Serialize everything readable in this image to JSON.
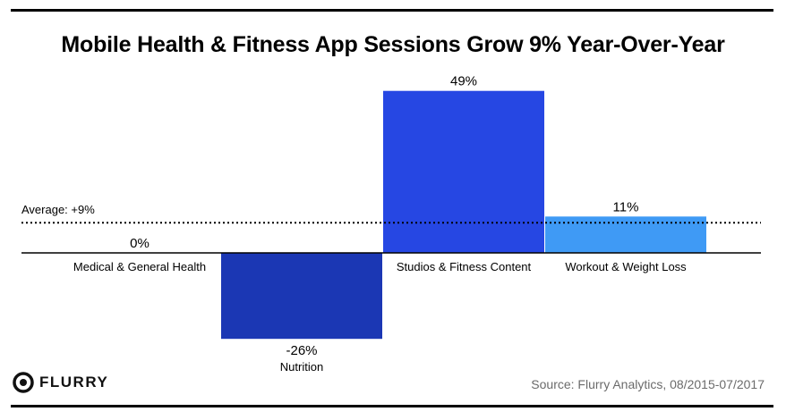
{
  "title": "Mobile Health & Fitness App Sessions Grow 9% Year-Over-Year",
  "source": "Source: Flurry Analytics, 08/2015-07/2017",
  "logo": {
    "text": "FLURRY",
    "icon": "flurry-logo-icon"
  },
  "chart_data": {
    "type": "bar",
    "title": "Mobile Health & Fitness App Sessions Grow 9% Year-Over-Year",
    "categories": [
      "Medical & General Health",
      "Nutrition",
      "Studios & Fitness Content",
      "Workout & Weight Loss"
    ],
    "values": [
      0,
      -26,
      49,
      11
    ],
    "value_labels": [
      "0%",
      "-26%",
      "49%",
      "11%"
    ],
    "colors": [
      "#1b3fc0",
      "#1b37b4",
      "#2647e3",
      "#3f9af5"
    ],
    "ylim": [
      -26,
      49
    ],
    "average": {
      "value": 9,
      "label": "Average: +9%"
    },
    "xlabel": "",
    "ylabel": ""
  }
}
